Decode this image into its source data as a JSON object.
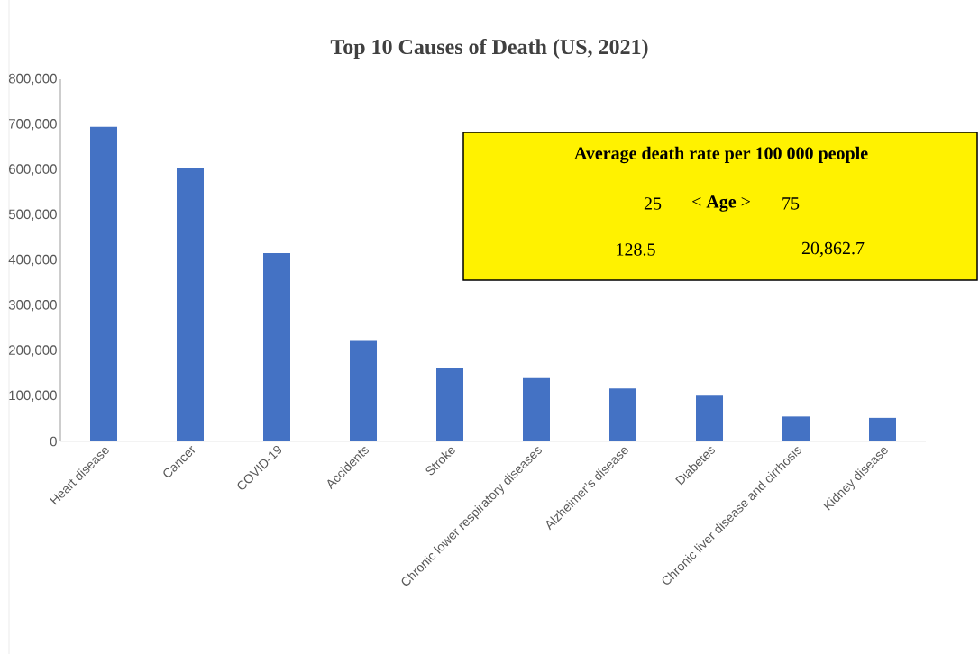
{
  "chart_data": {
    "type": "bar",
    "title": "Top 10 Causes of Death (US, 2021)",
    "categories": [
      "Heart disease",
      "Cancer",
      "COVID-19",
      "Accidents",
      "Stroke",
      "Chronic lower respiratory diseases",
      "Alzheimer’s disease",
      "Diabetes",
      "Chronic liver disease and cirrhosis",
      "Kidney disease"
    ],
    "values": [
      695000,
      604000,
      416000,
      224000,
      161000,
      140000,
      117000,
      101000,
      55000,
      52000
    ],
    "color": "#4472c4",
    "ylim": [
      0,
      800000
    ],
    "yticks": [
      0,
      {
        "value": 100000,
        "label": "100,000"
      },
      {
        "value": 200000,
        "label": "200,000"
      },
      {
        "value": 300000,
        "label": "300,000"
      },
      {
        "value": 400000,
        "label": "400,000"
      },
      {
        "value": 500000,
        "label": "500,000"
      },
      {
        "value": 600000,
        "label": "600,000"
      },
      {
        "value": 700000,
        "label": "700,000"
      },
      {
        "value": 800000,
        "label": "800,000"
      }
    ],
    "annotations": [
      "Average death rate per 100 000 people",
      "25",
      "< **Age** >",
      "75",
      "128.5",
      "20,862.7"
    ]
  }
}
